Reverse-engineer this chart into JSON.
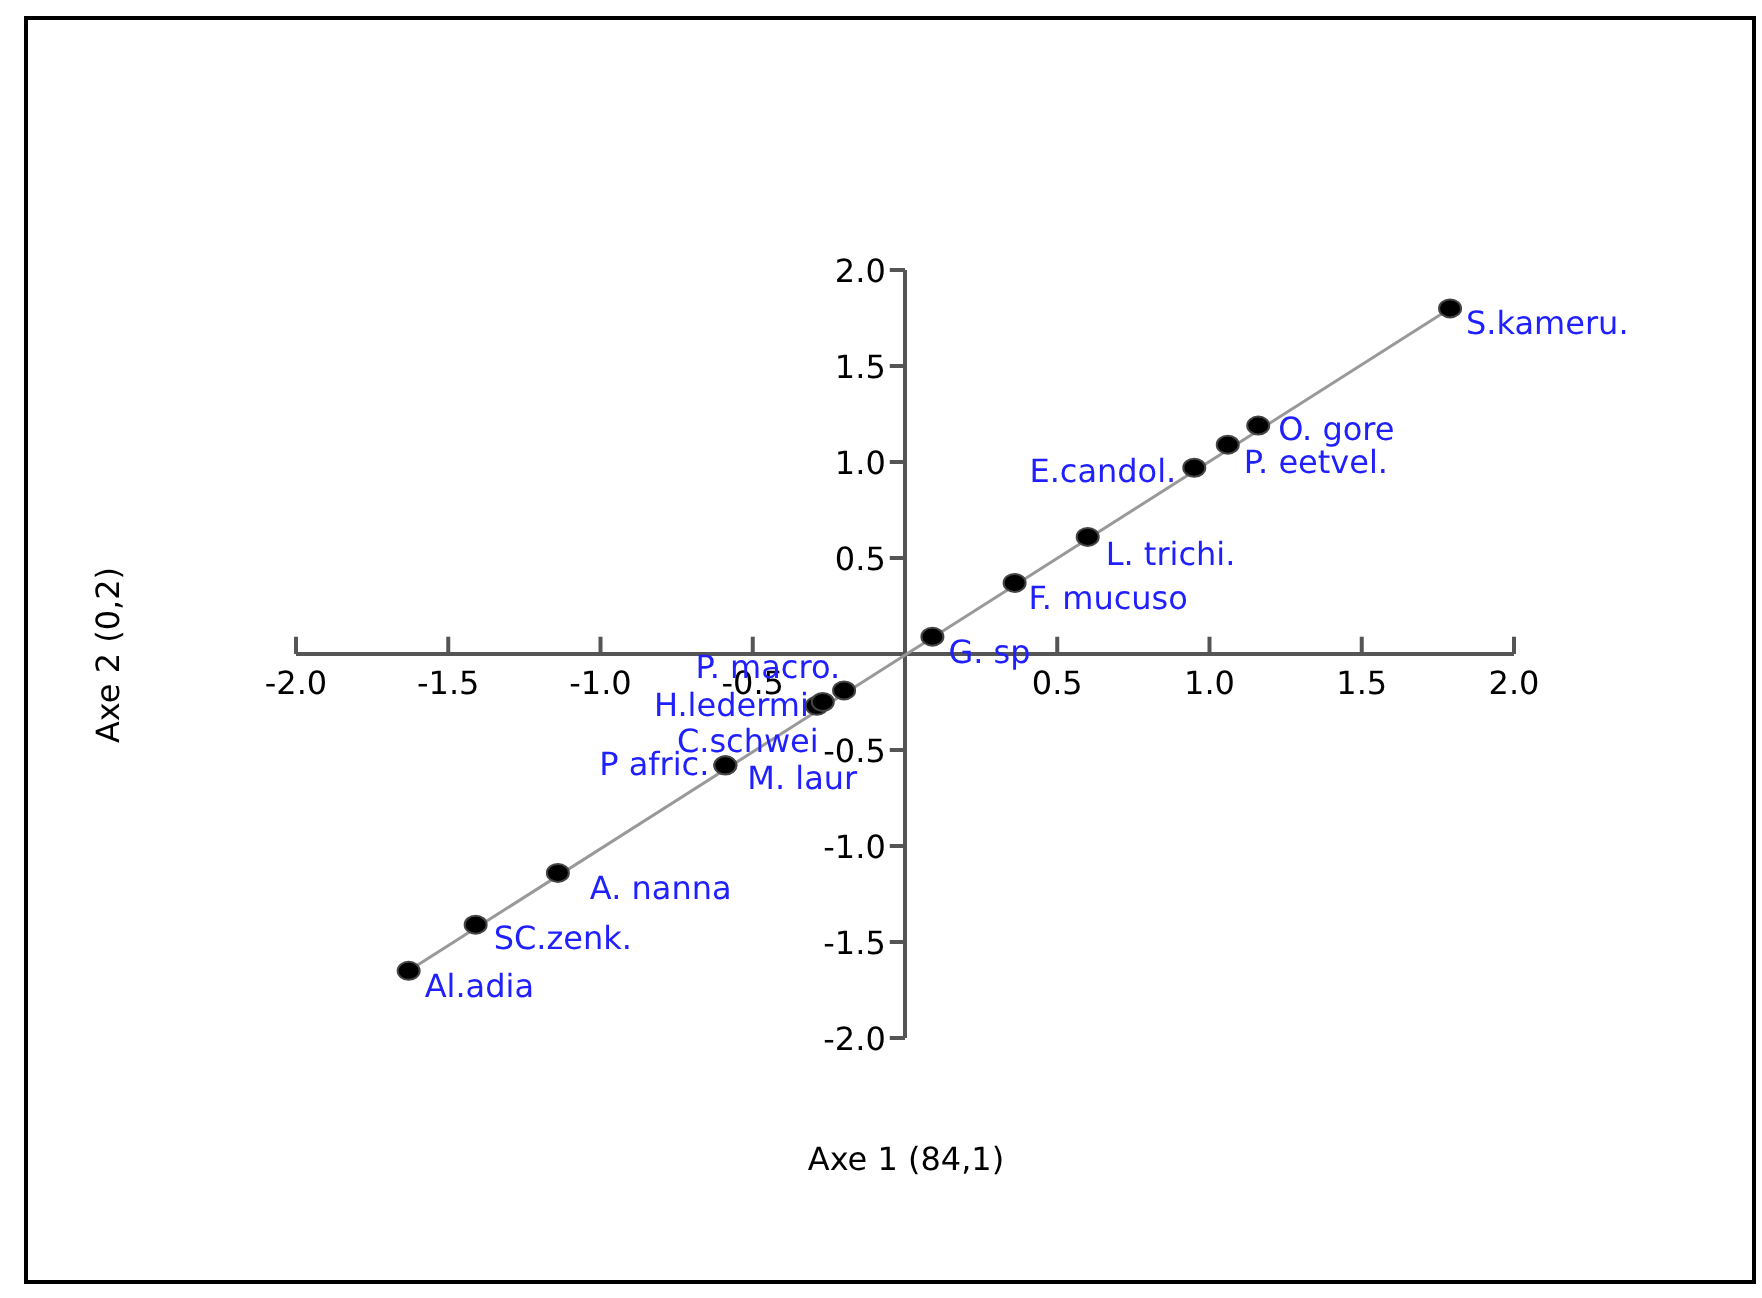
{
  "chart_data": {
    "type": "scatter",
    "xlabel": "Axe 1 (84,1)",
    "ylabel": "Axe 2 (0,2)",
    "xlim": [
      -2,
      2
    ],
    "ylim": [
      -2,
      2
    ],
    "xticks": [
      {
        "value": -2,
        "label": "-2.0"
      },
      {
        "value": -1.5,
        "label": "-1.5"
      },
      {
        "value": -1,
        "label": "-1.0"
      },
      {
        "value": -0.5,
        "label": "-0.5"
      },
      {
        "value": 0,
        "label": null
      },
      {
        "value": 0.5,
        "label": "0.5"
      },
      {
        "value": 1,
        "label": "1.0"
      },
      {
        "value": 1.5,
        "label": "1.5"
      },
      {
        "value": 2,
        "label": "2.0"
      }
    ],
    "yticks": [
      {
        "value": -2,
        "label": "-2.0"
      },
      {
        "value": -1.5,
        "label": "-1.5"
      },
      {
        "value": -1,
        "label": "-1.0"
      },
      {
        "value": -0.5,
        "label": "-0.5"
      },
      {
        "value": 0,
        "label": null
      },
      {
        "value": 0.5,
        "label": "0.5"
      },
      {
        "value": 1,
        "label": "1.0"
      },
      {
        "value": 1.5,
        "label": "1.5"
      },
      {
        "value": 2,
        "label": "2.0"
      }
    ],
    "marker": "circle",
    "series": [
      {
        "type": "line",
        "marker": "none",
        "color": "#999999",
        "x": [
          -1.63,
          1.79
        ],
        "values": [
          -1.65,
          1.8
        ]
      },
      {
        "color": "#000000",
        "x": [
          -1.63,
          -1.41,
          -1.14,
          -0.59,
          -0.59,
          -0.29,
          -0.27,
          -0.2,
          0.09,
          0.36,
          0.6,
          0.95,
          1.06,
          1.16,
          1.79
        ],
        "values": [
          -1.65,
          -1.41,
          -1.14,
          -0.58,
          -0.58,
          -0.27,
          -0.25,
          -0.19,
          0.09,
          0.37,
          0.61,
          0.97,
          1.09,
          1.19,
          1.8
        ],
        "value_labels": [
          "Al.adia",
          "SC.zenk.",
          "A. nanna",
          "P afric.",
          "M. laur",
          "C.schwei",
          "H.ledermi",
          "P. macro.",
          "G. sp",
          "F. mucuso",
          "L. trichi.",
          "E.candol.",
          "P. eetvel.",
          "O. gore",
          "S.kameru."
        ]
      }
    ]
  }
}
